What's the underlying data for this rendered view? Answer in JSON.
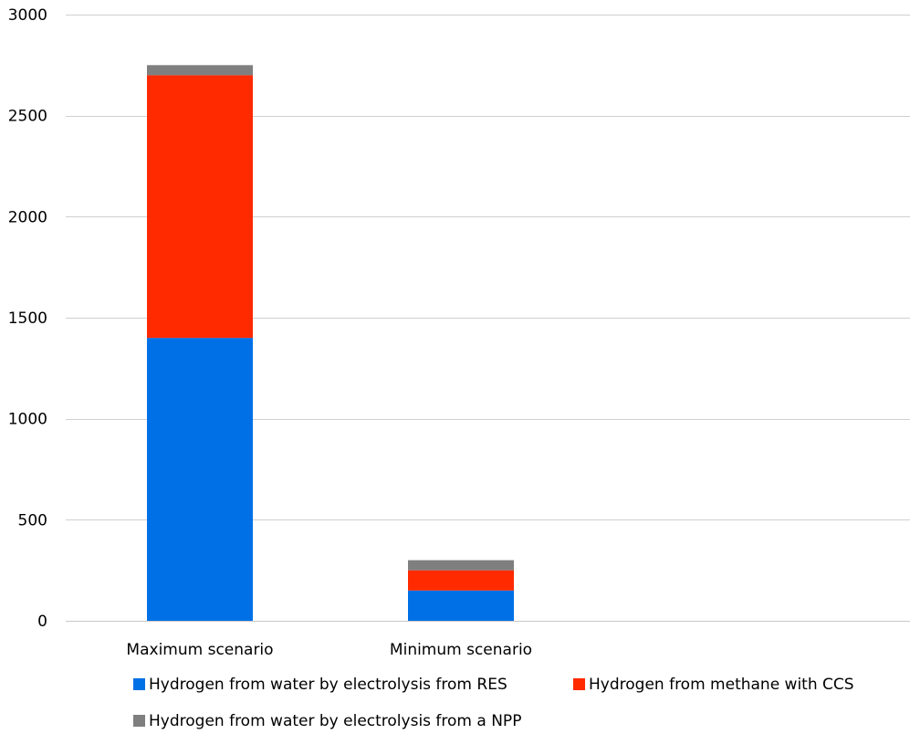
{
  "chart_data": {
    "type": "bar",
    "stacked": true,
    "categories": [
      "Maximum scenario",
      "Minimum scenario"
    ],
    "series": [
      {
        "name": "Hydrogen from water by electrolysis from RES",
        "color": "#0070E6",
        "values": [
          1400,
          150
        ]
      },
      {
        "name": "Hydrogen from methane with CCS",
        "color": "#FF2A00",
        "values": [
          1300,
          100
        ]
      },
      {
        "name": "Hydrogen from water by electrolysis from a NPP",
        "color": "#7F7F7F",
        "values": [
          50,
          50
        ]
      }
    ],
    "ylim": [
      0,
      3000
    ],
    "yticks": [
      0,
      500,
      1000,
      1500,
      2000,
      2500,
      3000
    ],
    "grid": true,
    "legend_position": "bottom"
  }
}
